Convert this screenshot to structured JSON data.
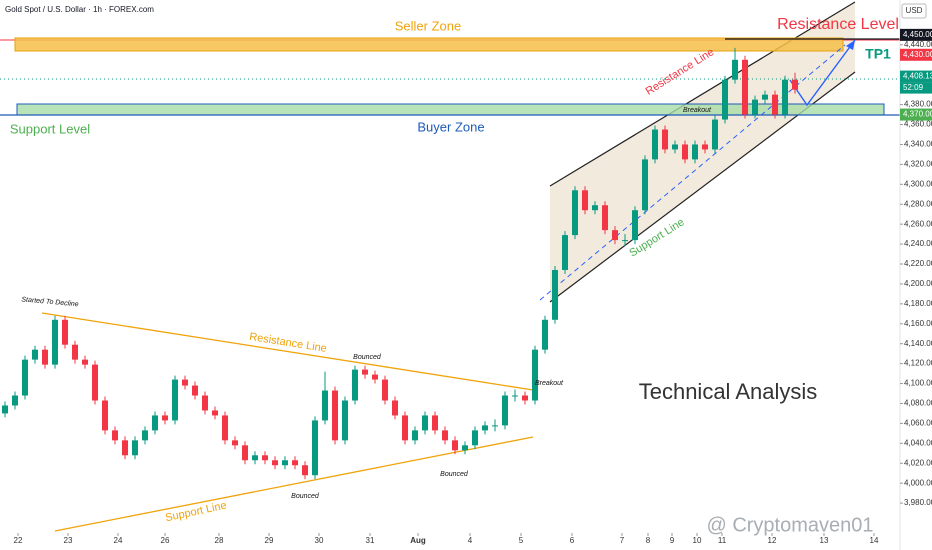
{
  "chart_data": {
    "type": "candlestick",
    "title": "Gold Spot / U.S. Dollar · 1h · FOREX.com",
    "currency": "USD",
    "up_color": "#089981",
    "down_color": "#f23645",
    "grid": false,
    "candles": [
      [
        4070,
        4082,
        4066,
        4078
      ],
      [
        4078,
        4092,
        4074,
        4088
      ],
      [
        4088,
        4128,
        4084,
        4124
      ],
      [
        4124,
        4138,
        4120,
        4134
      ],
      [
        4134,
        4138,
        4115,
        4119
      ],
      [
        4119,
        4168,
        4115,
        4164
      ],
      [
        4164,
        4168,
        4135,
        4139
      ],
      [
        4139,
        4143,
        4120,
        4124
      ],
      [
        4124,
        4128,
        4115,
        4119
      ],
      [
        4119,
        4123,
        4079,
        4083
      ],
      [
        4083,
        4087,
        4049,
        4053
      ],
      [
        4053,
        4057,
        4039,
        4043
      ],
      [
        4043,
        4047,
        4024,
        4028
      ],
      [
        4028,
        4047,
        4024,
        4043
      ],
      [
        4043,
        4057,
        4039,
        4053
      ],
      [
        4053,
        4072,
        4049,
        4068
      ],
      [
        4068,
        4072,
        4059,
        4063
      ],
      [
        4063,
        4108,
        4059,
        4104
      ],
      [
        4104,
        4108,
        4094,
        4098
      ],
      [
        4098,
        4102,
        4084,
        4088
      ],
      [
        4088,
        4092,
        4069,
        4073
      ],
      [
        4073,
        4077,
        4064,
        4068
      ],
      [
        4068,
        4072,
        4039,
        4043
      ],
      [
        4043,
        4047,
        4034,
        4038
      ],
      [
        4038,
        4042,
        4019,
        4023
      ],
      [
        4023,
        4032,
        4019,
        4028
      ],
      [
        4028,
        4032,
        4019,
        4023
      ],
      [
        4023,
        4027,
        4014,
        4018
      ],
      [
        4018,
        4027,
        4014,
        4023
      ],
      [
        4023,
        4027,
        4014,
        4018
      ],
      [
        4018,
        4022,
        4004,
        4008
      ],
      [
        4008,
        4067,
        4004,
        4063
      ],
      [
        4063,
        4112,
        4059,
        4093
      ],
      [
        4093,
        4097,
        4039,
        4043
      ],
      [
        4043,
        4087,
        4039,
        4083
      ],
      [
        4083,
        4118,
        4079,
        4114
      ],
      [
        4114,
        4118,
        4105,
        4109
      ],
      [
        4109,
        4113,
        4100,
        4104
      ],
      [
        4104,
        4108,
        4079,
        4083
      ],
      [
        4083,
        4087,
        4064,
        4068
      ],
      [
        4068,
        4072,
        4039,
        4043
      ],
      [
        4043,
        4057,
        4039,
        4053
      ],
      [
        4053,
        4072,
        4049,
        4068
      ],
      [
        4068,
        4072,
        4049,
        4053
      ],
      [
        4053,
        4057,
        4039,
        4043
      ],
      [
        4043,
        4047,
        4029,
        4033
      ],
      [
        4033,
        4042,
        4029,
        4038
      ],
      [
        4038,
        4057,
        4034,
        4053
      ],
      [
        4053,
        4062,
        4049,
        4058
      ],
      [
        4058,
        4064,
        4052,
        4058
      ],
      [
        4058,
        4092,
        4054,
        4088
      ],
      [
        4088,
        4094,
        4082,
        4088
      ],
      [
        4088,
        4092,
        4079,
        4083
      ],
      [
        4083,
        4138,
        4079,
        4134
      ],
      [
        4134,
        4168,
        4130,
        4164
      ],
      [
        4164,
        4218,
        4160,
        4214
      ],
      [
        4214,
        4253,
        4210,
        4249
      ],
      [
        4249,
        4298,
        4245,
        4294
      ],
      [
        4294,
        4298,
        4270,
        4274
      ],
      [
        4274,
        4283,
        4270,
        4279
      ],
      [
        4279,
        4283,
        4250,
        4254
      ],
      [
        4254,
        4258,
        4240,
        4244
      ],
      [
        4244,
        4250,
        4238,
        4244
      ],
      [
        4244,
        4278,
        4240,
        4274
      ],
      [
        4274,
        4329,
        4270,
        4325
      ],
      [
        4325,
        4359,
        4321,
        4355
      ],
      [
        4355,
        4359,
        4331,
        4335
      ],
      [
        4335,
        4344,
        4331,
        4340
      ],
      [
        4340,
        4344,
        4321,
        4325
      ],
      [
        4325,
        4344,
        4321,
        4340
      ],
      [
        4340,
        4344,
        4331,
        4335
      ],
      [
        4335,
        4369,
        4331,
        4365
      ],
      [
        4365,
        4409,
        4361,
        4405
      ],
      [
        4405,
        4437,
        4401,
        4425
      ],
      [
        4425,
        4429,
        4366,
        4370
      ],
      [
        4370,
        4389,
        4366,
        4385
      ],
      [
        4385,
        4394,
        4381,
        4390
      ],
      [
        4390,
        4394,
        4366,
        4370
      ],
      [
        4370,
        4409,
        4366,
        4405
      ],
      [
        4405,
        4412,
        4391,
        4395
      ]
    ],
    "xlim": [
      -0.5,
      89.5
    ],
    "xticks": [
      {
        "value": 1.3,
        "label": "22"
      },
      {
        "value": 6.3,
        "label": "23"
      },
      {
        "value": 11.3,
        "label": "24"
      },
      {
        "value": 16,
        "label": "26"
      },
      {
        "value": 21.4,
        "label": "28"
      },
      {
        "value": 26.4,
        "label": "29"
      },
      {
        "value": 31.4,
        "label": "30"
      },
      {
        "value": 36.5,
        "label": "31"
      },
      {
        "value": 41.3,
        "label": "Aug"
      },
      {
        "value": 46.5,
        "label": "4"
      },
      {
        "value": 51.6,
        "label": "5"
      },
      {
        "value": 56.7,
        "label": "6"
      },
      {
        "value": 61.7,
        "label": "7"
      },
      {
        "value": 64.3,
        "label": "8"
      },
      {
        "value": 66.7,
        "label": "9"
      },
      {
        "value": 69.2,
        "label": "10"
      },
      {
        "value": 71.7,
        "label": "11"
      },
      {
        "value": 76.7,
        "label": "12"
      },
      {
        "value": 81.9,
        "label": "13"
      },
      {
        "value": 86.9,
        "label": "14"
      }
    ],
    "ylim": [
      3953,
      4485
    ],
    "yticks": [
      {
        "value": 3980,
        "label": "3,980.00"
      },
      {
        "value": 4000,
        "label": "4,000.00"
      },
      {
        "value": 4020,
        "label": "4,020.00"
      },
      {
        "value": 4040,
        "label": "4,040.00"
      },
      {
        "value": 4060,
        "label": "4,060.00"
      },
      {
        "value": 4080,
        "label": "4,080.00"
      },
      {
        "value": 4100,
        "label": "4,100.00"
      },
      {
        "value": 4120,
        "label": "4,120.00"
      },
      {
        "value": 4140,
        "label": "4,140.00"
      },
      {
        "value": 4160,
        "label": "4,160.00"
      },
      {
        "value": 4180,
        "label": "4,180.00"
      },
      {
        "value": 4200,
        "label": "4,200.00"
      },
      {
        "value": 4220,
        "label": "4,220.00"
      },
      {
        "value": 4240,
        "label": "4,240.00"
      },
      {
        "value": 4260,
        "label": "4,260.00"
      },
      {
        "value": 4280,
        "label": "4,280.00"
      },
      {
        "value": 4300,
        "label": "4,300.00"
      },
      {
        "value": 4320,
        "label": "4,320.00"
      },
      {
        "value": 4340,
        "label": "4,340.00"
      },
      {
        "value": 4360,
        "label": "4,360.00"
      },
      {
        "value": 4380,
        "label": "4,380.00"
      },
      {
        "value": 4440,
        "label": "4,440.00"
      }
    ],
    "price_tags": [
      {
        "value": 4450,
        "label": "4,450.00",
        "color": "#131722"
      },
      {
        "value": 4430,
        "label": "4,430.00",
        "color": "#f23645"
      },
      {
        "value": 4408.13,
        "label": "4,408.13",
        "color": "#089981"
      },
      {
        "value": 4370,
        "label": "4,370.00",
        "color": "#4caf50"
      }
    ],
    "countdown": "52:09",
    "annotations": [
      "Seller Zone",
      "Resistance Level",
      "TP1",
      "Resistance Line",
      "Breakout",
      "Support Level",
      "Buyer Zone",
      "Support Line",
      "Started To Decline",
      "Resistance Line",
      "Bounced",
      "Breakout",
      "Technical Analysis",
      "Bounced",
      "Bounced",
      "Support Line",
      "@ Cryptomaven01"
    ]
  }
}
